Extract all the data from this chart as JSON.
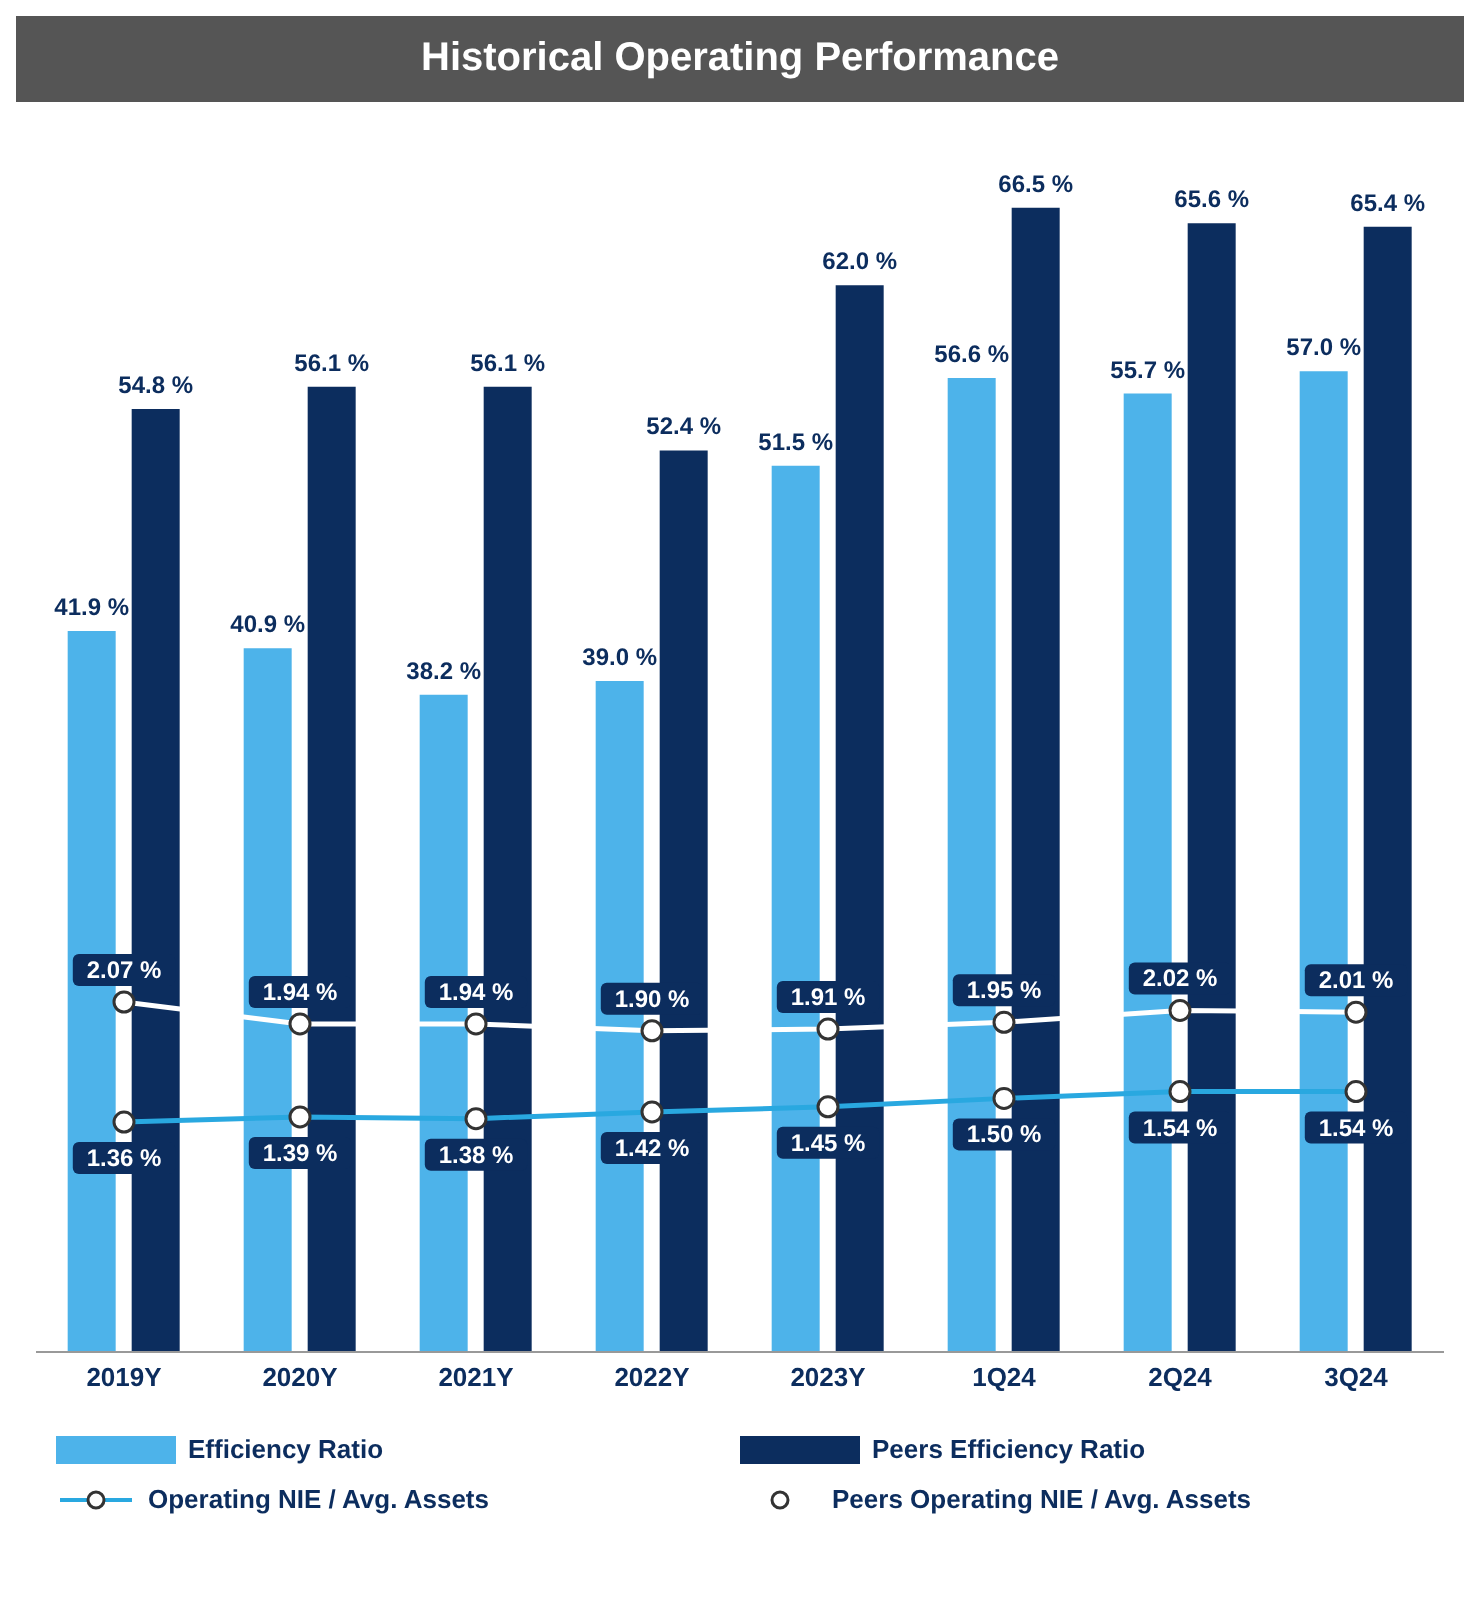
{
  "chart_data": {
    "type": "bar",
    "title": "Historical Operating Performance",
    "categories": [
      "2019Y",
      "2020Y",
      "2021Y",
      "2022Y",
      "2023Y",
      "1Q24",
      "2Q24",
      "3Q24"
    ],
    "series": [
      {
        "name": "Efficiency Ratio",
        "color": "#4db3ea",
        "values": [
          41.9,
          40.9,
          38.2,
          39.0,
          51.5,
          56.6,
          55.7,
          57.0
        ],
        "value_labels": [
          "41.9 %",
          "40.9 %",
          "38.2 %",
          "39.0 %",
          "51.5 %",
          "56.6 %",
          "55.7 %",
          "57.0 %"
        ]
      },
      {
        "name": "Peers Efficiency Ratio",
        "color": "#0c2d5e",
        "values": [
          54.8,
          56.1,
          56.1,
          52.4,
          62.0,
          66.5,
          65.6,
          65.4
        ],
        "value_labels": [
          "54.8 %",
          "56.1 %",
          "56.1 %",
          "52.4 %",
          "62.0 %",
          "66.5 %",
          "65.6 %",
          "65.4 %"
        ]
      },
      {
        "name": "Operating NIE / Avg. Assets",
        "type": "line",
        "axis": "y2",
        "color": "#29a8e0",
        "values": [
          1.36,
          1.39,
          1.38,
          1.42,
          1.45,
          1.5,
          1.54,
          1.54
        ],
        "value_labels": [
          "1.36 %",
          "1.39 %",
          "1.38 %",
          "1.42 %",
          "1.45 %",
          "1.50 %",
          "1.54 %",
          "1.54 %"
        ]
      },
      {
        "name": "Peers Operating NIE / Avg. Assets",
        "type": "line",
        "axis": "y2",
        "color": "#ffffff",
        "values": [
          2.07,
          1.94,
          1.94,
          1.9,
          1.91,
          1.95,
          2.02,
          2.01
        ],
        "value_labels": [
          "2.07 %",
          "1.94 %",
          "1.94 %",
          "1.90 %",
          "1.91 %",
          "1.95 %",
          "2.02 %",
          "2.01 %"
        ]
      }
    ],
    "tick_labels": "x",
    "marker": "circle",
    "line_style": "solid",
    "legend": "bottom"
  }
}
